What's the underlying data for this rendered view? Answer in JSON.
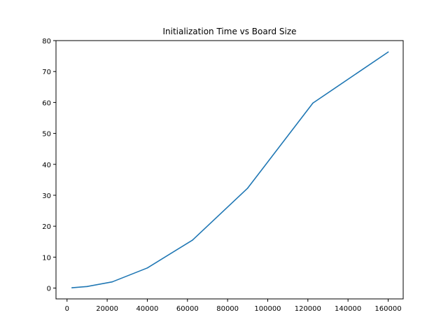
{
  "chart_data": {
    "type": "line",
    "title": "Initialization Time vs Board Size",
    "xlabel": "",
    "ylabel": "",
    "xlim": [
      -5500,
      167500
    ],
    "ylim": [
      -3.5,
      80
    ],
    "xticks": [
      0,
      20000,
      40000,
      60000,
      80000,
      100000,
      120000,
      140000,
      160000
    ],
    "yticks": [
      0,
      10,
      20,
      30,
      40,
      50,
      60,
      70,
      80
    ],
    "grid": false,
    "legend": "none",
    "series": [
      {
        "color": "#1f77b4",
        "x": [
          2500,
          10000,
          22500,
          40000,
          62500,
          90000,
          122500,
          160000
        ],
        "y": [
          0.1,
          0.5,
          2.0,
          6.5,
          15.5,
          32.3,
          59.8,
          76.3
        ]
      }
    ]
  }
}
